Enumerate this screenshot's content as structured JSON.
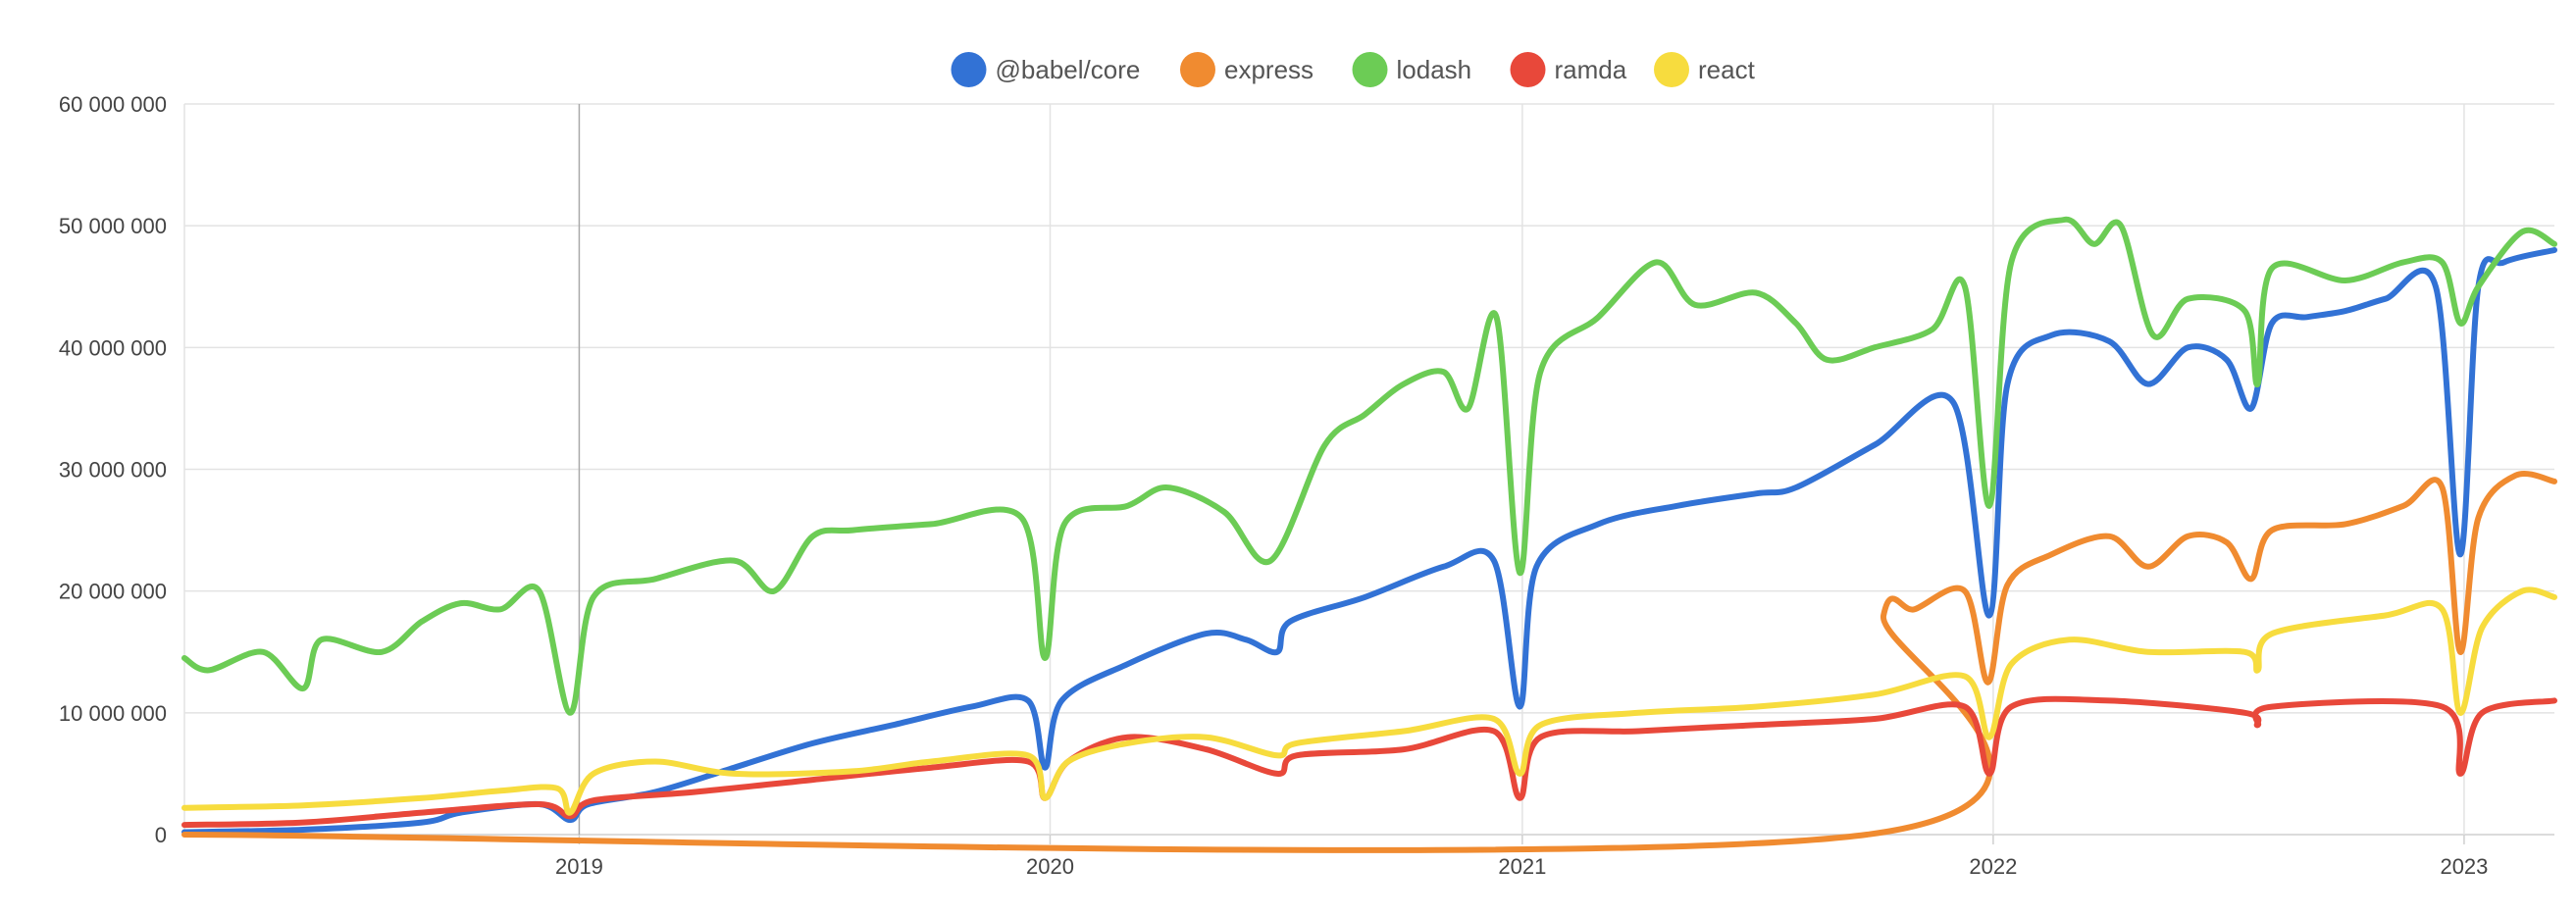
{
  "chart_data": {
    "type": "line",
    "title": "",
    "xlabel": "",
    "ylabel": "",
    "legend_position": "top-center",
    "grid": true,
    "xlim": [
      "2018-03-01",
      "2023-03-12"
    ],
    "ylim": [
      0,
      60000000
    ],
    "y_ticks": [
      {
        "value": 0,
        "label": "0"
      },
      {
        "value": 10000000,
        "label": "10 000 000"
      },
      {
        "value": 20000000,
        "label": "20 000 000"
      },
      {
        "value": 30000000,
        "label": "30 000 000"
      },
      {
        "value": 40000000,
        "label": "40 000 000"
      },
      {
        "value": 50000000,
        "label": "50 000 000"
      },
      {
        "value": 60000000,
        "label": "60 000 000"
      }
    ],
    "x_ticks": [
      {
        "date": "2019-01-01",
        "label": "2019"
      },
      {
        "date": "2020-01-01",
        "label": "2020"
      },
      {
        "date": "2021-01-01",
        "label": "2021"
      },
      {
        "date": "2022-01-01",
        "label": "2022"
      },
      {
        "date": "2023-01-01",
        "label": "2023"
      }
    ],
    "series": [
      {
        "name": "@babel/core",
        "color": "#3272d5",
        "points": [
          [
            "2018-03-01",
            0.2
          ],
          [
            "2018-06-01",
            0.4
          ],
          [
            "2018-09-01",
            1.0
          ],
          [
            "2018-10-01",
            1.8
          ],
          [
            "2018-12-01",
            2.5
          ],
          [
            "2018-12-25",
            1.2
          ],
          [
            "2019-01-08",
            2.5
          ],
          [
            "2019-03-01",
            3.5
          ],
          [
            "2019-05-01",
            5.5
          ],
          [
            "2019-07-01",
            7.5
          ],
          [
            "2019-09-01",
            9.0
          ],
          [
            "2019-11-01",
            10.5
          ],
          [
            "2019-12-15",
            11.0
          ],
          [
            "2019-12-28",
            5.5
          ],
          [
            "2020-01-10",
            11.0
          ],
          [
            "2020-03-01",
            14.0
          ],
          [
            "2020-05-01",
            16.5
          ],
          [
            "2020-06-01",
            16.0
          ],
          [
            "2020-06-25",
            15.0
          ],
          [
            "2020-07-05",
            17.5
          ],
          [
            "2020-09-01",
            19.5
          ],
          [
            "2020-11-01",
            22.0
          ],
          [
            "2020-12-10",
            22.5
          ],
          [
            "2020-12-30",
            10.5
          ],
          [
            "2021-01-12",
            22.0
          ],
          [
            "2021-03-01",
            25.5
          ],
          [
            "2021-05-01",
            27.0
          ],
          [
            "2021-07-01",
            28.0
          ],
          [
            "2021-08-01",
            28.5
          ],
          [
            "2021-10-01",
            32.0
          ],
          [
            "2021-12-01",
            35.5
          ],
          [
            "2021-12-29",
            18.0
          ],
          [
            "2022-01-12",
            37.0
          ],
          [
            "2022-02-15",
            41.0
          ],
          [
            "2022-04-01",
            40.5
          ],
          [
            "2022-05-01",
            37.0
          ],
          [
            "2022-06-01",
            40.0
          ],
          [
            "2022-07-01",
            39.0
          ],
          [
            "2022-07-20",
            35.0
          ],
          [
            "2022-08-05",
            42.0
          ],
          [
            "2022-09-01",
            42.5
          ],
          [
            "2022-10-01",
            43.0
          ],
          [
            "2022-11-01",
            44.0
          ],
          [
            "2022-12-10",
            45.0
          ],
          [
            "2022-12-29",
            23.0
          ],
          [
            "2023-01-12",
            45.0
          ],
          [
            "2023-02-01",
            47.0
          ],
          [
            "2023-03-12",
            48.0
          ]
        ]
      },
      {
        "name": "express",
        "color": "#f08b30",
        "points": [
          [
            "2018-03-01",
            0
          ],
          [
            "2021-09-25",
            0
          ],
          [
            "2021-10-08",
            18.0
          ],
          [
            "2021-11-01",
            18.5
          ],
          [
            "2021-12-10",
            20.0
          ],
          [
            "2021-12-28",
            12.5
          ],
          [
            "2022-01-12",
            20.5
          ],
          [
            "2022-02-15",
            23.0
          ],
          [
            "2022-04-01",
            24.5
          ],
          [
            "2022-05-01",
            22.0
          ],
          [
            "2022-06-01",
            24.5
          ],
          [
            "2022-07-01",
            24.0
          ],
          [
            "2022-07-20",
            21.0
          ],
          [
            "2022-08-05",
            25.0
          ],
          [
            "2022-10-01",
            25.5
          ],
          [
            "2022-11-15",
            27.0
          ],
          [
            "2022-12-15",
            28.5
          ],
          [
            "2022-12-29",
            15.0
          ],
          [
            "2023-01-12",
            26.0
          ],
          [
            "2023-02-10",
            29.5
          ],
          [
            "2023-03-12",
            29.0
          ]
        ]
      },
      {
        "name": "lodash",
        "color": "#6ccc55",
        "points": [
          [
            "2018-03-01",
            14.5
          ],
          [
            "2018-03-20",
            13.5
          ],
          [
            "2018-05-01",
            15.0
          ],
          [
            "2018-06-01",
            12.0
          ],
          [
            "2018-06-15",
            16.0
          ],
          [
            "2018-08-01",
            15.0
          ],
          [
            "2018-09-01",
            17.5
          ],
          [
            "2018-10-01",
            19.0
          ],
          [
            "2018-11-01",
            18.5
          ],
          [
            "2018-12-01",
            20.0
          ],
          [
            "2018-12-25",
            10.0
          ],
          [
            "2019-01-12",
            19.5
          ],
          [
            "2019-03-01",
            21.0
          ],
          [
            "2019-05-01",
            22.5
          ],
          [
            "2019-06-01",
            20.0
          ],
          [
            "2019-07-01",
            24.5
          ],
          [
            "2019-08-01",
            25.0
          ],
          [
            "2019-10-01",
            25.5
          ],
          [
            "2019-12-10",
            26.0
          ],
          [
            "2019-12-28",
            14.5
          ],
          [
            "2020-01-12",
            25.5
          ],
          [
            "2020-03-01",
            27.0
          ],
          [
            "2020-04-01",
            28.5
          ],
          [
            "2020-05-15",
            26.5
          ],
          [
            "2020-06-20",
            22.5
          ],
          [
            "2020-08-01",
            32.0
          ],
          [
            "2020-09-01",
            34.5
          ],
          [
            "2020-10-01",
            37.0
          ],
          [
            "2020-11-01",
            38.0
          ],
          [
            "2020-11-20",
            35.0
          ],
          [
            "2020-12-12",
            42.5
          ],
          [
            "2020-12-30",
            21.5
          ],
          [
            "2021-01-15",
            38.0
          ],
          [
            "2021-03-01",
            42.5
          ],
          [
            "2021-04-15",
            47.0
          ],
          [
            "2021-05-15",
            43.5
          ],
          [
            "2021-07-01",
            44.5
          ],
          [
            "2021-08-01",
            42.0
          ],
          [
            "2021-08-25",
            39.0
          ],
          [
            "2021-10-01",
            40.0
          ],
          [
            "2021-11-15",
            41.5
          ],
          [
            "2021-12-10",
            45.0
          ],
          [
            "2021-12-29",
            27.0
          ],
          [
            "2022-01-15",
            47.0
          ],
          [
            "2022-02-25",
            50.5
          ],
          [
            "2022-03-20",
            48.5
          ],
          [
            "2022-04-10",
            50.0
          ],
          [
            "2022-05-05",
            41.0
          ],
          [
            "2022-06-01",
            44.0
          ],
          [
            "2022-07-15",
            43.0
          ],
          [
            "2022-07-25",
            37.0
          ],
          [
            "2022-08-05",
            46.5
          ],
          [
            "2022-10-01",
            45.5
          ],
          [
            "2022-11-15",
            47.0
          ],
          [
            "2022-12-15",
            47.0
          ],
          [
            "2022-12-29",
            42.0
          ],
          [
            "2023-01-12",
            45.0
          ],
          [
            "2023-02-15",
            49.5
          ],
          [
            "2023-03-12",
            48.5
          ]
        ]
      },
      {
        "name": "ramda",
        "color": "#e8483a",
        "points": [
          [
            "2018-03-01",
            0.8
          ],
          [
            "2018-06-01",
            1.0
          ],
          [
            "2018-09-01",
            1.8
          ],
          [
            "2018-12-01",
            2.5
          ],
          [
            "2018-12-25",
            1.5
          ],
          [
            "2019-01-12",
            2.8
          ],
          [
            "2019-04-01",
            3.5
          ],
          [
            "2019-07-01",
            4.5
          ],
          [
            "2019-10-01",
            5.5
          ],
          [
            "2019-12-15",
            6.0
          ],
          [
            "2019-12-28",
            3.0
          ],
          [
            "2020-01-15",
            6.0
          ],
          [
            "2020-03-01",
            8.0
          ],
          [
            "2020-05-01",
            7.0
          ],
          [
            "2020-06-25",
            5.0
          ],
          [
            "2020-07-10",
            6.5
          ],
          [
            "2020-10-01",
            7.0
          ],
          [
            "2020-12-10",
            8.5
          ],
          [
            "2020-12-30",
            3.0
          ],
          [
            "2021-01-15",
            8.0
          ],
          [
            "2021-04-01",
            8.5
          ],
          [
            "2021-07-01",
            9.0
          ],
          [
            "2021-10-01",
            9.5
          ],
          [
            "2021-12-10",
            10.5
          ],
          [
            "2021-12-29",
            5.0
          ],
          [
            "2022-01-15",
            10.5
          ],
          [
            "2022-04-01",
            11.0
          ],
          [
            "2022-07-15",
            10.0
          ],
          [
            "2022-07-25",
            9.0
          ],
          [
            "2022-08-05",
            10.5
          ],
          [
            "2022-12-15",
            10.5
          ],
          [
            "2022-12-29",
            5.0
          ],
          [
            "2023-01-15",
            10.0
          ],
          [
            "2023-03-12",
            11.0
          ]
        ]
      },
      {
        "name": "react",
        "color": "#f7dc3e",
        "points": [
          [
            "2018-03-01",
            2.2
          ],
          [
            "2018-06-01",
            2.4
          ],
          [
            "2018-09-01",
            3.0
          ],
          [
            "2018-11-01",
            3.6
          ],
          [
            "2018-12-15",
            3.8
          ],
          [
            "2018-12-25",
            1.8
          ],
          [
            "2019-01-12",
            5.0
          ],
          [
            "2019-03-01",
            6.0
          ],
          [
            "2019-05-01",
            5.0
          ],
          [
            "2019-08-01",
            5.2
          ],
          [
            "2019-10-01",
            6.0
          ],
          [
            "2019-12-15",
            6.5
          ],
          [
            "2019-12-28",
            3.0
          ],
          [
            "2020-01-15",
            6.0
          ],
          [
            "2020-03-01",
            7.5
          ],
          [
            "2020-05-01",
            8.0
          ],
          [
            "2020-06-25",
            6.5
          ],
          [
            "2020-07-10",
            7.5
          ],
          [
            "2020-10-01",
            8.5
          ],
          [
            "2020-12-10",
            9.5
          ],
          [
            "2020-12-30",
            5.0
          ],
          [
            "2021-01-15",
            9.0
          ],
          [
            "2021-04-01",
            10.0
          ],
          [
            "2021-07-01",
            10.5
          ],
          [
            "2021-10-01",
            11.5
          ],
          [
            "2021-12-10",
            13.0
          ],
          [
            "2021-12-29",
            8.0
          ],
          [
            "2022-01-15",
            14.0
          ],
          [
            "2022-03-01",
            16.0
          ],
          [
            "2022-05-01",
            15.0
          ],
          [
            "2022-07-15",
            15.0
          ],
          [
            "2022-07-25",
            13.5
          ],
          [
            "2022-08-05",
            16.5
          ],
          [
            "2022-11-01",
            18.0
          ],
          [
            "2022-12-15",
            18.5
          ],
          [
            "2022-12-29",
            10.0
          ],
          [
            "2023-01-15",
            17.0
          ],
          [
            "2023-02-15",
            20.0
          ],
          [
            "2023-03-12",
            19.5
          ]
        ]
      }
    ]
  }
}
